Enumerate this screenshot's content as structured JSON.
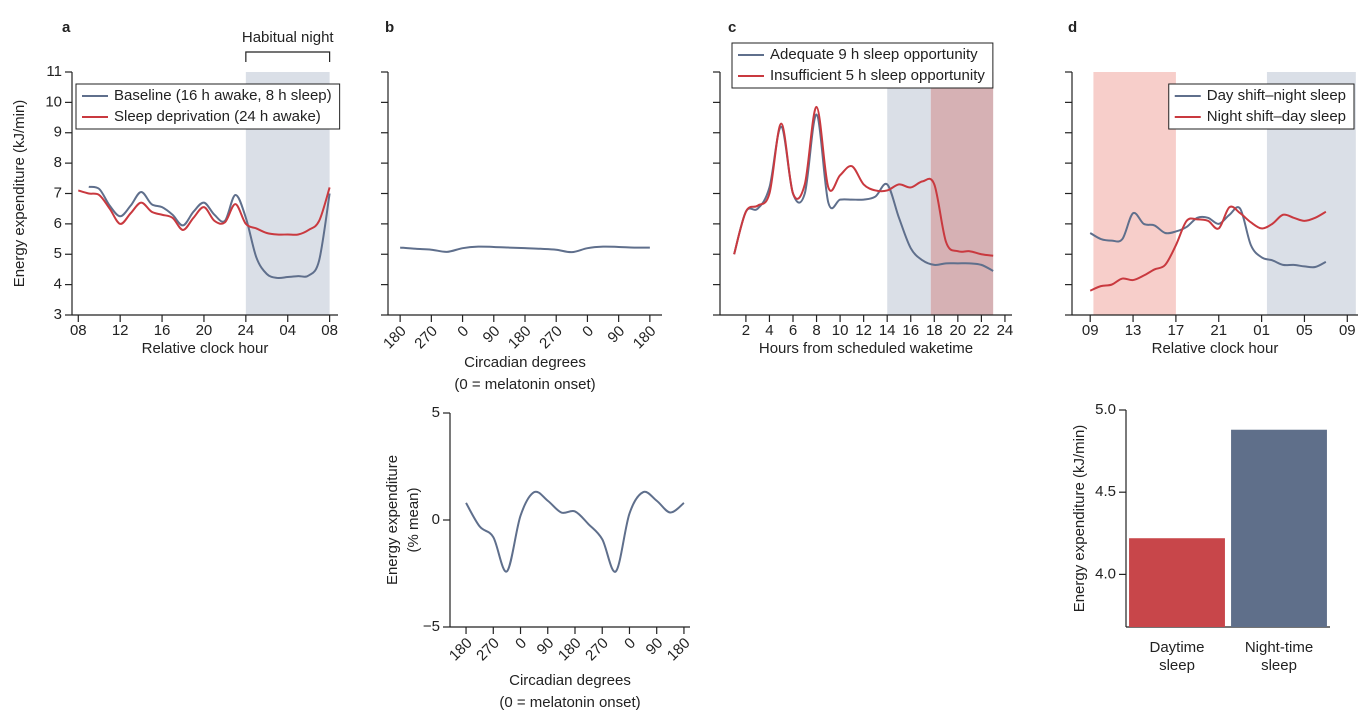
{
  "chart_data": [
    {
      "type": "line",
      "panel": "a",
      "xlabel": "Relative clock hour",
      "ylabel": "Energy expenditure (kJ/min)",
      "x": [
        0,
        1,
        2,
        3,
        4,
        5,
        6,
        7,
        8,
        9,
        10,
        11,
        12,
        13,
        14,
        15,
        16,
        17,
        18,
        19,
        20,
        21,
        22,
        23,
        24
      ],
      "series": [
        {
          "name": "Baseline (16 h awake, 8 h sleep)",
          "color": "#5f6f8c",
          "values": [
            null,
            7.22,
            7.15,
            6.6,
            6.25,
            6.6,
            7.05,
            6.65,
            6.55,
            6.3,
            5.95,
            6.4,
            6.7,
            6.3,
            6.1,
            6.95,
            6.2,
            4.9,
            4.35,
            4.22,
            4.25,
            4.28,
            4.3,
            4.8,
            7.0
          ]
        },
        {
          "name": "Sleep deprivation (24 h awake)",
          "color": "#c9393f",
          "values": [
            7.1,
            7.0,
            6.95,
            6.5,
            6.0,
            6.35,
            6.7,
            6.4,
            6.3,
            6.2,
            5.8,
            6.2,
            6.55,
            6.1,
            6.05,
            6.65,
            6.0,
            5.85,
            5.7,
            5.65,
            5.65,
            5.65,
            5.8,
            6.1,
            7.2
          ]
        }
      ],
      "xlim": [
        -0.6,
        24.8
      ],
      "ylim": [
        3,
        11
      ],
      "xticks": [
        {
          "value": 0,
          "label": "08"
        },
        {
          "value": 4,
          "label": "12"
        },
        {
          "value": 8,
          "label": "16"
        },
        {
          "value": 12,
          "label": "20"
        },
        {
          "value": 16,
          "label": "24"
        },
        {
          "value": 20,
          "label": "04"
        },
        {
          "value": 24,
          "label": "08"
        }
      ],
      "yticks": [
        3,
        4,
        5,
        6,
        7,
        8,
        9,
        10,
        11
      ],
      "shaded_regions": [
        {
          "xlim": [
            16,
            24
          ],
          "color": "#d4d9e3"
        }
      ],
      "annotations": [
        {
          "text": "Habitual night",
          "x": [
            16,
            24
          ]
        }
      ],
      "legend": "upper left"
    },
    {
      "type": "line",
      "panel": "b",
      "xlabel": [
        "Circadian degrees",
        "(0 = melatonin onset)"
      ],
      "x": [
        180,
        225,
        270,
        315,
        360,
        405,
        450,
        495,
        540,
        585,
        630,
        675,
        720,
        765,
        810,
        855,
        900
      ],
      "series": [
        {
          "color": "#5f6f8c",
          "values": [
            5.22,
            5.18,
            5.15,
            5.08,
            5.2,
            5.25,
            5.24,
            5.22,
            5.2,
            5.18,
            5.15,
            5.07,
            5.2,
            5.25,
            5.24,
            5.22,
            5.22
          ]
        }
      ],
      "xlim": [
        145,
        935
      ],
      "ylim": [
        3,
        11
      ],
      "xticks": [
        180,
        270,
        {
          "value": 360,
          "label": "0"
        },
        {
          "value": 450,
          "label": "90"
        },
        {
          "value": 540,
          "label": "180"
        },
        {
          "value": 630,
          "label": "270"
        },
        {
          "value": 720,
          "label": "0"
        },
        {
          "value": 810,
          "label": "90"
        },
        {
          "value": 900,
          "label": "180"
        }
      ],
      "yticks": [
        3,
        4,
        5,
        6,
        7,
        8,
        9,
        10,
        11
      ],
      "ytick_labels": false,
      "rotate_xticks": true
    },
    {
      "type": "line",
      "xlabel": [
        "Circadian degrees",
        "(0 = melatonin onset)"
      ],
      "ylabel": [
        "Energy expenditure",
        "(% mean)"
      ],
      "x": [
        180,
        225,
        270,
        315,
        360,
        405,
        450,
        495,
        540,
        585,
        630,
        675,
        720,
        765,
        810,
        855,
        900
      ],
      "series": [
        {
          "color": "#5f6f8c",
          "values": [
            0.8,
            -0.3,
            -0.8,
            -2.4,
            0.2,
            1.3,
            0.9,
            0.35,
            0.4,
            -0.2,
            -0.9,
            -2.4,
            0.3,
            1.3,
            0.9,
            0.35,
            0.8
          ]
        }
      ],
      "xlim": [
        127,
        920
      ],
      "ylim": [
        -5,
        5
      ],
      "xticks": [
        180,
        270,
        {
          "value": 360,
          "label": "0"
        },
        {
          "value": 450,
          "label": "90"
        },
        {
          "value": 540,
          "label": "180"
        },
        {
          "value": 630,
          "label": "270"
        },
        {
          "value": 720,
          "label": "0"
        },
        {
          "value": 810,
          "label": "90"
        },
        {
          "value": 900,
          "label": "180"
        }
      ],
      "yticks": [
        {
          "value": -5,
          "label": "−5"
        },
        0,
        5
      ],
      "rotate_xticks": true
    },
    {
      "type": "line",
      "panel": "c",
      "xlabel": "Hours from scheduled waketime",
      "x": [
        1,
        2,
        3,
        4,
        5,
        6,
        7,
        8,
        9,
        10,
        11,
        12,
        13,
        14,
        15,
        16,
        17,
        18,
        19,
        20,
        21,
        22,
        23
      ],
      "series": [
        {
          "name": "Adequate 9 h sleep opportunity",
          "color": "#5f6f8c",
          "values": [
            5.0,
            6.4,
            6.5,
            7.2,
            9.2,
            7.0,
            7.0,
            9.6,
            6.7,
            6.8,
            6.8,
            6.8,
            6.9,
            7.3,
            6.2,
            5.2,
            4.8,
            4.65,
            4.7,
            4.7,
            4.7,
            4.65,
            4.45
          ]
        },
        {
          "name": "Insufficient 5 h sleep opportunity",
          "color": "#c9393f",
          "values": [
            5.0,
            6.4,
            6.6,
            7.0,
            9.3,
            7.0,
            7.3,
            9.85,
            7.2,
            7.6,
            7.9,
            7.3,
            7.1,
            7.1,
            7.3,
            7.2,
            7.4,
            7.3,
            5.4,
            5.1,
            5.1,
            5.0,
            4.95
          ]
        }
      ],
      "xlim": [
        -0.2,
        24.6
      ],
      "ylim": [
        3,
        11
      ],
      "xticks": [
        2,
        4,
        6,
        8,
        10,
        12,
        14,
        16,
        18,
        20,
        22,
        24
      ],
      "yticks": [
        3,
        4,
        5,
        6,
        7,
        8,
        9,
        10,
        11
      ],
      "ytick_labels": false,
      "shaded_regions": [
        {
          "xlim": [
            14,
            17.7
          ],
          "color": "#d4d9e3"
        },
        {
          "xlim": [
            17.7,
            23
          ],
          "color": "#cfa3a7"
        }
      ],
      "legend": "top"
    },
    {
      "type": "line",
      "panel": "d",
      "xlabel": "Relative clock hour",
      "x": [
        0,
        1,
        2,
        3,
        4,
        5,
        6,
        7,
        8,
        9,
        10,
        11,
        12,
        13,
        14,
        15,
        16,
        17,
        18,
        19,
        20,
        21,
        22
      ],
      "series": [
        {
          "name": "Day shift–night sleep",
          "color": "#5f6f8c",
          "values": [
            5.7,
            5.5,
            5.45,
            5.5,
            6.35,
            6.0,
            5.95,
            5.7,
            5.75,
            5.9,
            6.2,
            6.2,
            6.0,
            6.3,
            6.5,
            5.3,
            4.9,
            4.8,
            4.65,
            4.65,
            4.6,
            4.58,
            4.75
          ]
        },
        {
          "name": "Night shift–day sleep",
          "color": "#c9393f",
          "values": [
            3.8,
            3.95,
            4.0,
            4.2,
            4.15,
            4.3,
            4.5,
            4.65,
            5.3,
            6.1,
            6.15,
            6.1,
            5.85,
            6.55,
            6.35,
            6.05,
            5.85,
            6.0,
            6.3,
            6.2,
            6.1,
            6.2,
            6.4
          ]
        }
      ],
      "xlim": [
        -1.7,
        25
      ],
      "ylim": [
        3,
        11
      ],
      "xticks": [
        {
          "value": 0,
          "label": "09"
        },
        {
          "value": 4,
          "label": "13"
        },
        {
          "value": 8,
          "label": "17"
        },
        {
          "value": 12,
          "label": "21"
        },
        {
          "value": 16,
          "label": "01"
        },
        {
          "value": 20,
          "label": "05"
        },
        {
          "value": 24,
          "label": "09"
        }
      ],
      "yticks": [
        3,
        4,
        5,
        6,
        7,
        8,
        9,
        10,
        11
      ],
      "ytick_labels": false,
      "shaded_regions": [
        {
          "xlim": [
            0.3,
            8
          ],
          "color": "#f6c6c1"
        },
        {
          "xlim": [
            16.5,
            24.8
          ],
          "color": "#d4d9e3"
        }
      ],
      "legend": "upper right"
    },
    {
      "type": "bar",
      "ylabel": "Energy expenditure (kJ/min)",
      "categories": [
        [
          "Daytime",
          "sleep"
        ],
        [
          "Night-time",
          "sleep"
        ]
      ],
      "values": [
        4.22,
        4.88
      ],
      "colors": [
        "#c8464a",
        "#5f6f8a"
      ],
      "ylim": [
        3.68,
        5.0
      ],
      "yticks": [
        {
          "value": 4.0,
          "label": "4.0"
        },
        4.5,
        {
          "value": 5.0,
          "label": "5.0"
        }
      ]
    }
  ]
}
